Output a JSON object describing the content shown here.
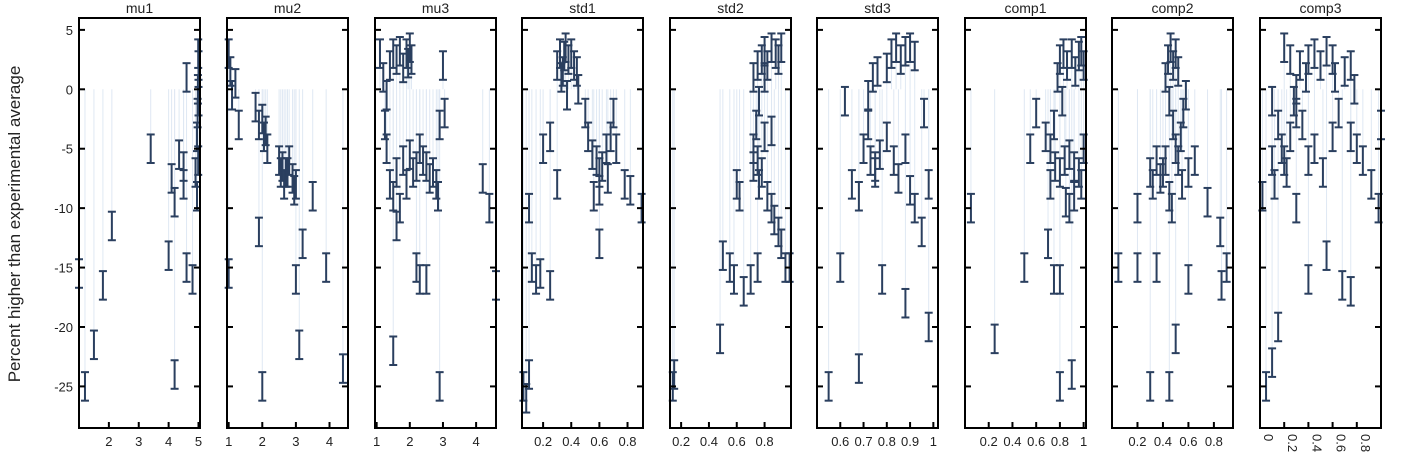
{
  "figure": {
    "ylabel": "Percent higher than experimental average",
    "ylim": [
      -28.5,
      6
    ],
    "yticks": [
      5,
      0,
      -5,
      -10,
      -15,
      -20,
      -25
    ],
    "marker_color": "#2a3f5f",
    "line_color": "#dfe8f3"
  },
  "chart_data": [
    {
      "type": "scatter",
      "title": "mu1",
      "xlim": [
        1.0,
        5.05
      ],
      "xticks": [
        2,
        3,
        4,
        5
      ],
      "grid": false,
      "points": [
        [
          1.0,
          -15.5
        ],
        [
          1.2,
          -25
        ],
        [
          1.5,
          -21.5
        ],
        [
          1.8,
          -16.5
        ],
        [
          2.1,
          -11.5
        ],
        [
          3.4,
          -5
        ],
        [
          4.0,
          -14
        ],
        [
          4.1,
          -7.5
        ],
        [
          4.2,
          -9.5
        ],
        [
          4.2,
          -24
        ],
        [
          4.35,
          -5.5
        ],
        [
          4.5,
          -6.5
        ],
        [
          4.5,
          -8
        ],
        [
          4.6,
          -15
        ],
        [
          4.6,
          1
        ],
        [
          4.8,
          -16
        ],
        [
          4.95,
          -4
        ],
        [
          4.97,
          -2
        ],
        [
          4.98,
          0
        ],
        [
          5.0,
          2
        ],
        [
          4.99,
          3
        ],
        [
          4.9,
          -7
        ],
        [
          4.95,
          -9
        ],
        [
          4.99,
          -6
        ],
        [
          5.0,
          -1
        ]
      ],
      "err": 1.2
    },
    {
      "type": "scatter",
      "title": "mu2",
      "xlim": [
        0.95,
        4.55
      ],
      "xticks": [
        1,
        2,
        3,
        4
      ],
      "grid": false,
      "points": [
        [
          1.0,
          3
        ],
        [
          1.05,
          1.5
        ],
        [
          1.1,
          -0.5
        ],
        [
          1.2,
          0.5
        ],
        [
          1.0,
          -15.5
        ],
        [
          1.3,
          -3
        ],
        [
          1.8,
          -1.5
        ],
        [
          1.9,
          -3
        ],
        [
          2.0,
          -2.5
        ],
        [
          2.05,
          -4
        ],
        [
          2.1,
          -3.5
        ],
        [
          2.15,
          -5
        ],
        [
          1.9,
          -12
        ],
        [
          2.0,
          -25
        ],
        [
          2.5,
          -6
        ],
        [
          2.6,
          -6.5
        ],
        [
          2.7,
          -7
        ],
        [
          2.8,
          -6
        ],
        [
          2.9,
          -7.5
        ],
        [
          2.95,
          -8.5
        ],
        [
          3.0,
          -8
        ],
        [
          2.75,
          -7
        ],
        [
          3.2,
          -13
        ],
        [
          3.5,
          -9
        ],
        [
          3.0,
          -16
        ],
        [
          3.1,
          -21.5
        ],
        [
          3.9,
          -15
        ],
        [
          4.4,
          -23.5
        ],
        [
          2.55,
          -7
        ],
        [
          2.65,
          -8
        ]
      ],
      "err": 1.2
    },
    {
      "type": "scatter",
      "title": "mu3",
      "xlim": [
        0.95,
        4.6
      ],
      "xticks": [
        1,
        2,
        3,
        4
      ],
      "grid": false,
      "points": [
        [
          1.1,
          3
        ],
        [
          1.2,
          1
        ],
        [
          1.3,
          -0.5
        ],
        [
          1.4,
          2
        ],
        [
          1.5,
          3
        ],
        [
          1.6,
          2.5
        ],
        [
          1.7,
          3.2
        ],
        [
          1.8,
          1.8
        ],
        [
          1.9,
          3
        ],
        [
          1.95,
          2.2
        ],
        [
          2.0,
          3.5
        ],
        [
          2.05,
          2.5
        ],
        [
          1.25,
          -3
        ],
        [
          1.3,
          -5
        ],
        [
          1.4,
          -8
        ],
        [
          1.5,
          -9
        ],
        [
          1.6,
          -7
        ],
        [
          1.7,
          -10
        ],
        [
          1.8,
          -6
        ],
        [
          1.9,
          -8
        ],
        [
          2.0,
          -5.5
        ],
        [
          2.1,
          -7
        ],
        [
          2.2,
          -6.5
        ],
        [
          2.3,
          -5
        ],
        [
          2.4,
          -6
        ],
        [
          2.5,
          -6.5
        ],
        [
          2.6,
          -7.5
        ],
        [
          2.7,
          -7
        ],
        [
          2.8,
          -8
        ],
        [
          2.85,
          -9
        ],
        [
          2.2,
          -15
        ],
        [
          2.3,
          -16
        ],
        [
          2.5,
          -16
        ],
        [
          1.5,
          -22
        ],
        [
          2.9,
          -3
        ],
        [
          3.05,
          -2
        ],
        [
          3.0,
          2
        ],
        [
          2.9,
          -25
        ],
        [
          4.2,
          -7.5
        ],
        [
          4.4,
          -10
        ],
        [
          4.6,
          -16.5
        ],
        [
          1.6,
          -11.5
        ]
      ],
      "err": 1.2
    },
    {
      "type": "scatter",
      "title": "std1",
      "xlim": [
        0.05,
        0.91
      ],
      "xticks": [
        0.2,
        0.4,
        0.6,
        0.8
      ],
      "grid": false,
      "points": [
        [
          0.3,
          2
        ],
        [
          0.32,
          3
        ],
        [
          0.34,
          1.5
        ],
        [
          0.36,
          3.5
        ],
        [
          0.38,
          2.5
        ],
        [
          0.4,
          3
        ],
        [
          0.42,
          2
        ],
        [
          0.44,
          1.5
        ],
        [
          0.35,
          2.8
        ],
        [
          0.33,
          1
        ],
        [
          0.37,
          -0.5
        ],
        [
          0.45,
          0
        ],
        [
          0.5,
          -2
        ],
        [
          0.52,
          -4
        ],
        [
          0.55,
          -5.5
        ],
        [
          0.58,
          -6
        ],
        [
          0.6,
          -7
        ],
        [
          0.62,
          -6.5
        ],
        [
          0.65,
          -5
        ],
        [
          0.66,
          -7.5
        ],
        [
          0.6,
          -8.5
        ],
        [
          0.56,
          -9
        ],
        [
          0.68,
          -4
        ],
        [
          0.7,
          -2
        ],
        [
          0.72,
          -5
        ],
        [
          0.78,
          -8
        ],
        [
          0.82,
          -8.5
        ],
        [
          0.9,
          -10
        ],
        [
          0.1,
          -10
        ],
        [
          0.12,
          -15
        ],
        [
          0.15,
          -16
        ],
        [
          0.2,
          -5
        ],
        [
          0.25,
          -4
        ],
        [
          0.25,
          -16.5
        ],
        [
          0.6,
          -13
        ],
        [
          0.06,
          -25
        ],
        [
          0.08,
          -26
        ],
        [
          0.1,
          -24
        ],
        [
          0.18,
          -15.5
        ],
        [
          0.3,
          -8
        ]
      ],
      "err": 1.2
    },
    {
      "type": "scatter",
      "title": "std2",
      "xlim": [
        0.12,
        0.99
      ],
      "xticks": [
        0.2,
        0.4,
        0.6,
        0.8
      ],
      "grid": false,
      "points": [
        [
          0.72,
          1
        ],
        [
          0.75,
          2
        ],
        [
          0.78,
          2.5
        ],
        [
          0.8,
          3.2
        ],
        [
          0.82,
          2
        ],
        [
          0.85,
          3.5
        ],
        [
          0.88,
          3
        ],
        [
          0.9,
          2.5
        ],
        [
          0.92,
          3.5
        ],
        [
          0.8,
          1
        ],
        [
          0.76,
          -1
        ],
        [
          0.74,
          -3
        ],
        [
          0.72,
          -5
        ],
        [
          0.75,
          -6
        ],
        [
          0.78,
          -7
        ],
        [
          0.8,
          -4
        ],
        [
          0.82,
          -9
        ],
        [
          0.85,
          -10
        ],
        [
          0.87,
          -11
        ],
        [
          0.9,
          -12
        ],
        [
          0.92,
          -13
        ],
        [
          0.95,
          -15
        ],
        [
          0.98,
          -15
        ],
        [
          0.85,
          -3.5
        ],
        [
          0.6,
          -8
        ],
        [
          0.62,
          -9
        ],
        [
          0.55,
          -15
        ],
        [
          0.58,
          -16
        ],
        [
          0.5,
          -14
        ],
        [
          0.48,
          -21
        ],
        [
          0.65,
          -17
        ],
        [
          0.7,
          -16
        ],
        [
          0.75,
          -15
        ],
        [
          0.14,
          -25
        ],
        [
          0.15,
          -24
        ],
        [
          0.72,
          -6.5
        ],
        [
          0.76,
          -8
        ]
      ],
      "err": 1.2
    },
    {
      "type": "scatter",
      "title": "std3",
      "xlim": [
        0.5,
        1.02
      ],
      "xticks": [
        0.6,
        0.7,
        0.8,
        0.9,
        1
      ],
      "grid": false,
      "points": [
        [
          0.72,
          -0.5
        ],
        [
          0.74,
          1
        ],
        [
          0.76,
          1.5
        ],
        [
          0.8,
          1.8
        ],
        [
          0.82,
          3
        ],
        [
          0.84,
          3.5
        ],
        [
          0.86,
          2.5
        ],
        [
          0.88,
          3.2
        ],
        [
          0.9,
          3.5
        ],
        [
          0.92,
          2.8
        ],
        [
          0.72,
          -3
        ],
        [
          0.7,
          -5
        ],
        [
          0.73,
          -6
        ],
        [
          0.75,
          -7
        ],
        [
          0.77,
          -5.5
        ],
        [
          0.8,
          -4
        ],
        [
          0.83,
          -6
        ],
        [
          0.85,
          -7.5
        ],
        [
          0.88,
          -5
        ],
        [
          0.9,
          -8.5
        ],
        [
          0.92,
          -10
        ],
        [
          0.95,
          -12
        ],
        [
          0.98,
          -8
        ],
        [
          0.65,
          -8
        ],
        [
          0.68,
          -9
        ],
        [
          0.55,
          -25
        ],
        [
          0.6,
          -15
        ],
        [
          0.68,
          -23.5
        ],
        [
          0.78,
          -16
        ],
        [
          0.88,
          -18
        ],
        [
          0.98,
          -20
        ],
        [
          0.62,
          -1
        ],
        [
          0.96,
          -2
        ],
        [
          0.75,
          -6.5
        ]
      ],
      "err": 1.2
    },
    {
      "type": "scatter",
      "title": "comp1",
      "xlim": [
        0.0,
        1.02
      ],
      "xticks": [
        0.2,
        0.4,
        0.6,
        0.8,
        1
      ],
      "grid": false,
      "points": [
        [
          0.78,
          1
        ],
        [
          0.8,
          2.5
        ],
        [
          0.83,
          3
        ],
        [
          0.86,
          2
        ],
        [
          0.9,
          3
        ],
        [
          0.93,
          1.5
        ],
        [
          0.96,
          2.8
        ],
        [
          0.98,
          3.2
        ],
        [
          1.0,
          2
        ],
        [
          0.82,
          -1
        ],
        [
          0.75,
          -3
        ],
        [
          0.72,
          -5
        ],
        [
          0.76,
          -6.5
        ],
        [
          0.8,
          -7
        ],
        [
          0.84,
          -6
        ],
        [
          0.88,
          -5.5
        ],
        [
          0.92,
          -6.5
        ],
        [
          0.96,
          -7
        ],
        [
          1.0,
          -5
        ],
        [
          0.98,
          -8
        ],
        [
          0.85,
          -9.5
        ],
        [
          0.88,
          -10
        ],
        [
          0.92,
          -9
        ],
        [
          0.5,
          -15
        ],
        [
          0.6,
          -2
        ],
        [
          0.68,
          -4
        ],
        [
          0.7,
          -13
        ],
        [
          0.75,
          -16
        ],
        [
          0.8,
          -16
        ],
        [
          0.8,
          -25
        ],
        [
          0.9,
          -24
        ],
        [
          0.25,
          -21
        ],
        [
          0.05,
          -10
        ],
        [
          0.55,
          -5
        ],
        [
          0.72,
          -8
        ]
      ],
      "err": 1.2
    },
    {
      "type": "scatter",
      "title": "comp2",
      "xlim": [
        0.0,
        0.95
      ],
      "xticks": [
        0.2,
        0.4,
        0.6,
        0.8
      ],
      "grid": false,
      "points": [
        [
          0.42,
          1
        ],
        [
          0.44,
          2.5
        ],
        [
          0.46,
          3.5
        ],
        [
          0.48,
          2
        ],
        [
          0.5,
          3
        ],
        [
          0.52,
          1.5
        ],
        [
          0.45,
          -1
        ],
        [
          0.48,
          -3
        ],
        [
          0.5,
          -5
        ],
        [
          0.52,
          -6
        ],
        [
          0.54,
          -4
        ],
        [
          0.56,
          -2
        ],
        [
          0.58,
          -0.5
        ],
        [
          0.4,
          -7
        ],
        [
          0.42,
          -6
        ],
        [
          0.38,
          -7.5
        ],
        [
          0.35,
          -6
        ],
        [
          0.32,
          -8
        ],
        [
          0.3,
          -7
        ],
        [
          0.45,
          -9
        ],
        [
          0.47,
          -10
        ],
        [
          0.55,
          -8
        ],
        [
          0.6,
          -7
        ],
        [
          0.65,
          -6
        ],
        [
          0.75,
          -9.5
        ],
        [
          0.85,
          -12
        ],
        [
          0.9,
          -15
        ],
        [
          0.05,
          -15
        ],
        [
          0.2,
          -10
        ],
        [
          0.2,
          -15
        ],
        [
          0.3,
          -25
        ],
        [
          0.45,
          -25
        ],
        [
          0.5,
          -21
        ],
        [
          0.6,
          -16
        ],
        [
          0.86,
          -16.5
        ],
        [
          0.35,
          -15
        ]
      ],
      "err": 1.2
    },
    {
      "type": "scatter",
      "title": "comp3",
      "xlim": [
        0.0,
        1.0
      ],
      "xticks": [
        0,
        0.2,
        0.4,
        0.6,
        0.8
      ],
      "grid": false,
      "points": [
        [
          0.1,
          -1
        ],
        [
          0.15,
          -3
        ],
        [
          0.18,
          -5
        ],
        [
          0.2,
          -6
        ],
        [
          0.22,
          -7
        ],
        [
          0.25,
          -4
        ],
        [
          0.12,
          -8
        ],
        [
          0.1,
          -6
        ],
        [
          0.3,
          0
        ],
        [
          0.33,
          2
        ],
        [
          0.38,
          1
        ],
        [
          0.4,
          2.5
        ],
        [
          0.45,
          3
        ],
        [
          0.5,
          2
        ],
        [
          0.55,
          3.2
        ],
        [
          0.6,
          2.5
        ],
        [
          0.62,
          1
        ],
        [
          0.7,
          1.5
        ],
        [
          0.75,
          2
        ],
        [
          0.78,
          0
        ],
        [
          0.2,
          3.5
        ],
        [
          0.25,
          2.5
        ],
        [
          0.28,
          -1
        ],
        [
          0.3,
          -2
        ],
        [
          0.35,
          -3
        ],
        [
          0.4,
          -6
        ],
        [
          0.45,
          -5
        ],
        [
          0.52,
          -7
        ],
        [
          0.6,
          -4
        ],
        [
          0.65,
          -2
        ],
        [
          0.75,
          -4
        ],
        [
          0.8,
          -5
        ],
        [
          0.85,
          -6
        ],
        [
          0.92,
          -8
        ],
        [
          0.98,
          -10
        ],
        [
          0.05,
          -25
        ],
        [
          0.1,
          -23
        ],
        [
          0.15,
          -20
        ],
        [
          0.3,
          -10
        ],
        [
          0.4,
          -16
        ],
        [
          0.55,
          -14
        ],
        [
          0.68,
          -16.5
        ],
        [
          0.75,
          -17
        ],
        [
          0.02,
          -9
        ],
        [
          1.0,
          -3
        ]
      ],
      "err": 1.2
    }
  ]
}
